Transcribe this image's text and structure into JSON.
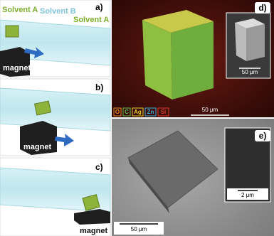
{
  "panels": [
    {
      "label": "a)",
      "solvents": [
        "Solvent A",
        "Solvent B",
        "Solvent A"
      ],
      "magnet": "magnet"
    },
    {
      "label": "b)",
      "magnet": "magnet"
    },
    {
      "label": "c)",
      "magnet": "magnet"
    },
    {
      "label": "d)",
      "scale_bar": "50 μm",
      "inset_scale_bar": "50 μm",
      "elements": [
        "O",
        "C",
        "Ag",
        "Zn",
        "Si"
      ]
    },
    {
      "label": "e)",
      "scale_bar": "50 μm",
      "inset_scale_bar": "2 μm"
    }
  ]
}
